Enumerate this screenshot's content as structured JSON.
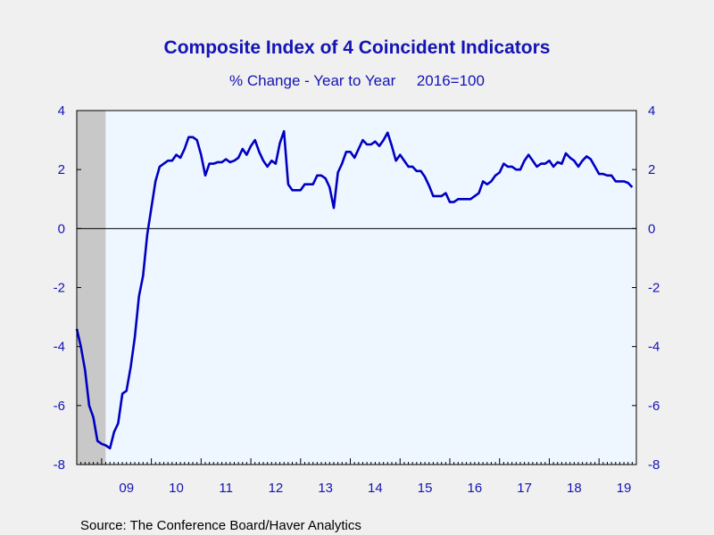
{
  "chart_data": {
    "type": "line",
    "title": "Composite Index of 4 Coincident Indicators",
    "subtitle": "% Change - Year to Year     2016=100",
    "source": "Source:  The Conference Board/Haver Analytics",
    "ylim": [
      -8,
      4
    ],
    "yticks": [
      -8,
      -6,
      -4,
      -2,
      0,
      2,
      4
    ],
    "ytick_labels": [
      "-8",
      "-6",
      "-4",
      "-2",
      "0",
      "2",
      "4"
    ],
    "xlim": [
      2008.5,
      2019.75
    ],
    "xtick_labels": [
      "09",
      "10",
      "11",
      "12",
      "13",
      "14",
      "15",
      "16",
      "17",
      "18",
      "19"
    ],
    "xtick_years": [
      2009,
      2010,
      2011,
      2012,
      2013,
      2014,
      2015,
      2016,
      2017,
      2018,
      2019
    ],
    "dual_y_axis": true,
    "zero_line": true,
    "grid": false,
    "recession_shading": [
      2008.5,
      2009.08
    ],
    "colors": {
      "line": "#0000c0",
      "plot_background": "#eef6ff",
      "recession": "#c8c8c8",
      "text": "#1414b4",
      "page_background": "#f0f0f0"
    },
    "series": [
      {
        "x": [
          2008.5,
          2008.583,
          2008.667,
          2008.75,
          2008.833,
          2008.917,
          2009.0,
          2009.083,
          2009.167,
          2009.25,
          2009.333,
          2009.417,
          2009.5,
          2009.583,
          2009.667,
          2009.75,
          2009.833,
          2009.917,
          2010.0,
          2010.083,
          2010.167,
          2010.25,
          2010.333,
          2010.417,
          2010.5,
          2010.583,
          2010.667,
          2010.75,
          2010.833,
          2010.917,
          2011.0,
          2011.083,
          2011.167,
          2011.25,
          2011.333,
          2011.417,
          2011.5,
          2011.583,
          2011.667,
          2011.75,
          2011.833,
          2011.917,
          2012.0,
          2012.083,
          2012.167,
          2012.25,
          2012.333,
          2012.417,
          2012.5,
          2012.583,
          2012.667,
          2012.75,
          2012.833,
          2012.917,
          2013.0,
          2013.083,
          2013.167,
          2013.25,
          2013.333,
          2013.417,
          2013.5,
          2013.583,
          2013.667,
          2013.75,
          2013.833,
          2013.917,
          2014.0,
          2014.083,
          2014.167,
          2014.25,
          2014.333,
          2014.417,
          2014.5,
          2014.583,
          2014.667,
          2014.75,
          2014.833,
          2014.917,
          2015.0,
          2015.083,
          2015.167,
          2015.25,
          2015.333,
          2015.417,
          2015.5,
          2015.583,
          2015.667,
          2015.75,
          2015.833,
          2015.917,
          2016.0,
          2016.083,
          2016.167,
          2016.25,
          2016.333,
          2016.417,
          2016.5,
          2016.583,
          2016.667,
          2016.75,
          2016.833,
          2016.917,
          2017.0,
          2017.083,
          2017.167,
          2017.25,
          2017.333,
          2017.417,
          2017.5,
          2017.583,
          2017.667,
          2017.75,
          2017.833,
          2017.917,
          2018.0,
          2018.083,
          2018.167,
          2018.25,
          2018.333,
          2018.417,
          2018.5,
          2018.583,
          2018.667,
          2018.75,
          2018.833,
          2018.917,
          2019.0,
          2019.083,
          2019.167,
          2019.25,
          2019.333,
          2019.417,
          2019.5,
          2019.583,
          2019.667
        ],
        "y": [
          -3.4,
          -4.0,
          -4.8,
          -6.0,
          -6.4,
          -7.2,
          -7.3,
          -7.35,
          -7.45,
          -6.9,
          -6.6,
          -5.6,
          -5.5,
          -4.7,
          -3.7,
          -2.3,
          -1.6,
          -0.2,
          0.7,
          1.6,
          2.1,
          2.2,
          2.3,
          2.3,
          2.5,
          2.4,
          2.7,
          3.1,
          3.1,
          3.0,
          2.5,
          1.8,
          2.2,
          2.2,
          2.25,
          2.25,
          2.35,
          2.25,
          2.3,
          2.4,
          2.7,
          2.5,
          2.8,
          3.0,
          2.6,
          2.3,
          2.1,
          2.3,
          2.2,
          2.9,
          3.3,
          1.5,
          1.3,
          1.3,
          1.3,
          1.5,
          1.5,
          1.5,
          1.8,
          1.8,
          1.7,
          1.4,
          0.7,
          1.9,
          2.2,
          2.6,
          2.6,
          2.4,
          2.7,
          3.0,
          2.85,
          2.85,
          2.95,
          2.8,
          3.0,
          3.25,
          2.8,
          2.3,
          2.5,
          2.3,
          2.1,
          2.1,
          1.95,
          1.95,
          1.75,
          1.45,
          1.1,
          1.1,
          1.1,
          1.2,
          0.9,
          0.9,
          1.0,
          1.0,
          1.0,
          1.0,
          1.1,
          1.2,
          1.6,
          1.5,
          1.6,
          1.8,
          1.9,
          2.2,
          2.1,
          2.1,
          2.0,
          2.0,
          2.3,
          2.5,
          2.3,
          2.1,
          2.2,
          2.2,
          2.3,
          2.1,
          2.25,
          2.2,
          2.55,
          2.4,
          2.3,
          2.1,
          2.3,
          2.45,
          2.35,
          2.1,
          1.85,
          1.85,
          1.8,
          1.8,
          1.6,
          1.6,
          1.6,
          1.55,
          1.4
        ]
      }
    ]
  }
}
